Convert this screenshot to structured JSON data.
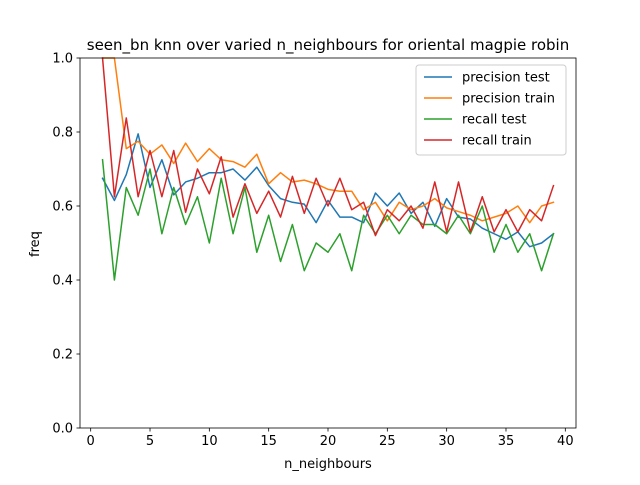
{
  "chart_data": {
    "type": "line",
    "title": "seen_bn knn over varied n_neighbours for oriental magpie robin",
    "xlabel": "n_neighbours",
    "ylabel": "freq",
    "xlim": [
      -0.9,
      40.9
    ],
    "ylim": [
      0.0,
      1.0
    ],
    "xticks": [
      0,
      5,
      10,
      15,
      20,
      25,
      30,
      35,
      40
    ],
    "yticks": [
      0.0,
      0.2,
      0.4,
      0.6,
      0.8,
      1.0
    ],
    "xtick_labels": [
      "0",
      "5",
      "10",
      "15",
      "20",
      "25",
      "30",
      "35",
      "40"
    ],
    "ytick_labels": [
      "0.0",
      "0.2",
      "0.4",
      "0.6",
      "0.8",
      "1.0"
    ],
    "grid": false,
    "legend_position": "top-right",
    "x": [
      1,
      2,
      3,
      4,
      5,
      6,
      7,
      8,
      9,
      10,
      11,
      12,
      13,
      14,
      15,
      16,
      17,
      18,
      19,
      20,
      21,
      22,
      23,
      24,
      25,
      26,
      27,
      28,
      29,
      30,
      31,
      32,
      33,
      34,
      35,
      36,
      37,
      38,
      39
    ],
    "series": [
      {
        "name": "precision test",
        "color": "#1f77b4",
        "values": [
          0.675,
          0.615,
          0.685,
          0.795,
          0.65,
          0.725,
          0.63,
          0.665,
          0.675,
          0.69,
          0.69,
          0.7,
          0.67,
          0.705,
          0.655,
          0.62,
          0.61,
          0.605,
          0.555,
          0.615,
          0.57,
          0.57,
          0.555,
          0.635,
          0.6,
          0.635,
          0.58,
          0.61,
          0.545,
          0.62,
          0.57,
          0.565,
          0.54,
          0.525,
          0.51,
          0.53,
          0.49,
          0.5,
          0.525
        ]
      },
      {
        "name": "precision train",
        "color": "#ff7f0e",
        "values": [
          1.0,
          1.0,
          0.755,
          0.775,
          0.74,
          0.765,
          0.715,
          0.77,
          0.72,
          0.755,
          0.725,
          0.72,
          0.705,
          0.74,
          0.66,
          0.69,
          0.665,
          0.67,
          0.66,
          0.645,
          0.64,
          0.64,
          0.59,
          0.61,
          0.56,
          0.61,
          0.59,
          0.6,
          0.62,
          0.595,
          0.585,
          0.575,
          0.56,
          0.57,
          0.58,
          0.6,
          0.555,
          0.6,
          0.61
        ]
      },
      {
        "name": "recall test",
        "color": "#2ca02c",
        "values": [
          0.725,
          0.4,
          0.65,
          0.575,
          0.7,
          0.525,
          0.65,
          0.55,
          0.625,
          0.5,
          0.675,
          0.525,
          0.65,
          0.475,
          0.575,
          0.45,
          0.55,
          0.425,
          0.5,
          0.475,
          0.525,
          0.425,
          0.575,
          0.525,
          0.575,
          0.525,
          0.575,
          0.55,
          0.55,
          0.525,
          0.575,
          0.525,
          0.6,
          0.475,
          0.55,
          0.475,
          0.525,
          0.425,
          0.525
        ]
      },
      {
        "name": "recall train",
        "color": "#d62728",
        "values": [
          1.0,
          0.625,
          0.838,
          0.625,
          0.75,
          0.625,
          0.75,
          0.583,
          0.7,
          0.633,
          0.733,
          0.57,
          0.66,
          0.58,
          0.64,
          0.57,
          0.68,
          0.58,
          0.675,
          0.6,
          0.675,
          0.59,
          0.61,
          0.52,
          0.59,
          0.56,
          0.6,
          0.54,
          0.665,
          0.53,
          0.665,
          0.53,
          0.625,
          0.53,
          0.59,
          0.53,
          0.59,
          0.56,
          0.655
        ]
      }
    ]
  }
}
